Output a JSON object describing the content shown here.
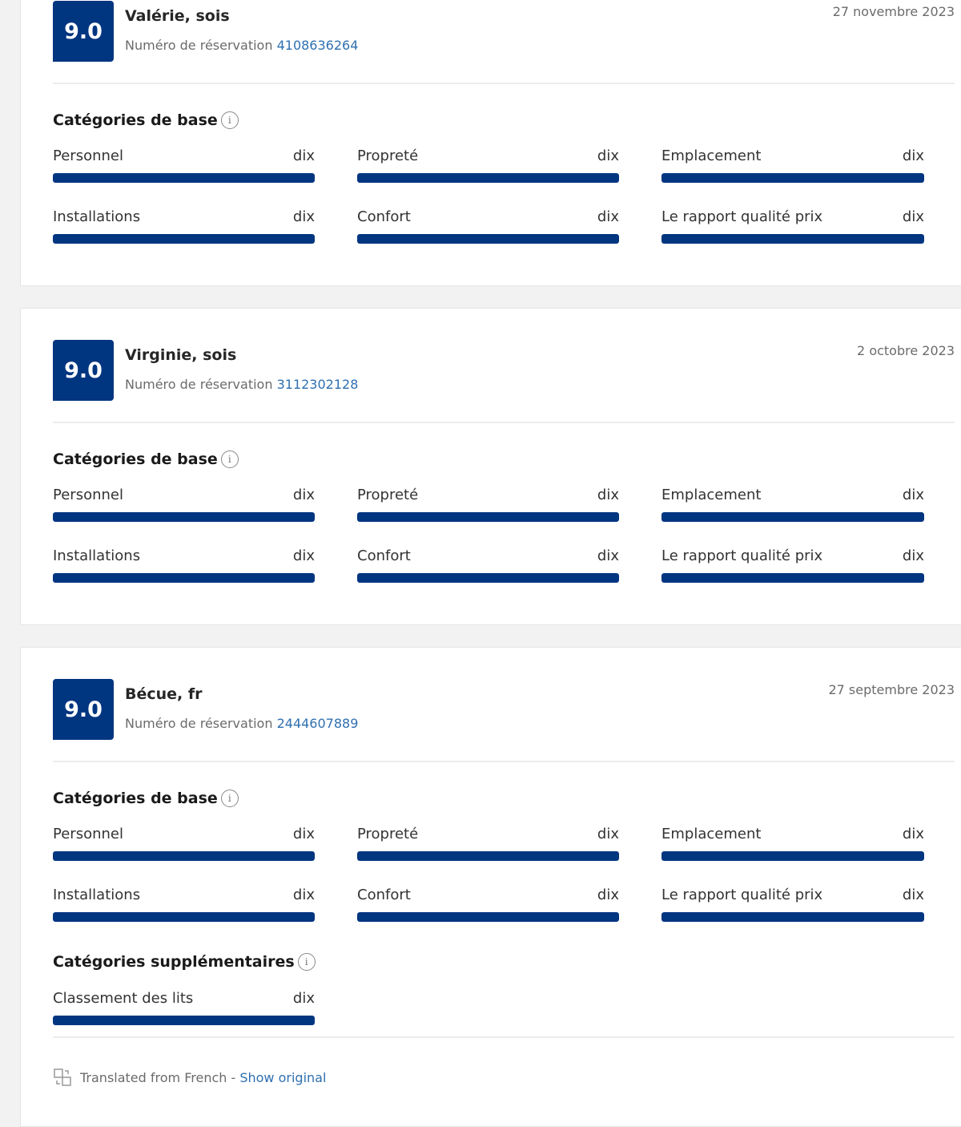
{
  "colors": {
    "accent": "#003580",
    "link": "#2f6fb0"
  },
  "booking_label": "Numéro de réservation",
  "base_title": "Catégories de base",
  "extra_title": "Catégories supplémentaires",
  "reviews": [
    {
      "score": "9.0",
      "name": "Valérie, sois",
      "booking": "4108636264",
      "date": "27 novembre 2023",
      "base": [
        {
          "label": "Personnel",
          "value": "dix",
          "fill": 1
        },
        {
          "label": "Propreté",
          "value": "dix",
          "fill": 1
        },
        {
          "label": "Emplacement",
          "value": "dix",
          "fill": 1
        },
        {
          "label": "Installations",
          "value": "dix",
          "fill": 1
        },
        {
          "label": "Confort",
          "value": "dix",
          "fill": 1
        },
        {
          "label": "Le rapport qualité prix",
          "value": "dix",
          "fill": 1
        }
      ]
    },
    {
      "score": "9.0",
      "name": "Virginie, sois",
      "booking": "3112302128",
      "date": "2 octobre 2023",
      "base": [
        {
          "label": "Personnel",
          "value": "dix",
          "fill": 1
        },
        {
          "label": "Propreté",
          "value": "dix",
          "fill": 1
        },
        {
          "label": "Emplacement",
          "value": "dix",
          "fill": 1
        },
        {
          "label": "Installations",
          "value": "dix",
          "fill": 1
        },
        {
          "label": "Confort",
          "value": "dix",
          "fill": 1
        },
        {
          "label": "Le rapport qualité prix",
          "value": "dix",
          "fill": 1
        }
      ]
    },
    {
      "score": "9.0",
      "name": "Bécue, fr",
      "booking": "2444607889",
      "date": "27 septembre 2023",
      "base": [
        {
          "label": "Personnel",
          "value": "dix",
          "fill": 1
        },
        {
          "label": "Propreté",
          "value": "dix",
          "fill": 1
        },
        {
          "label": "Emplacement",
          "value": "dix",
          "fill": 1
        },
        {
          "label": "Installations",
          "value": "dix",
          "fill": 1
        },
        {
          "label": "Confort",
          "value": "dix",
          "fill": 1
        },
        {
          "label": "Le rapport qualité prix",
          "value": "dix",
          "fill": 1
        }
      ],
      "extra": [
        {
          "label": "Classement des lits",
          "value": "dix",
          "fill": 1
        }
      ],
      "translation": {
        "text": "Translated from French - ",
        "link": "Show original"
      }
    }
  ]
}
